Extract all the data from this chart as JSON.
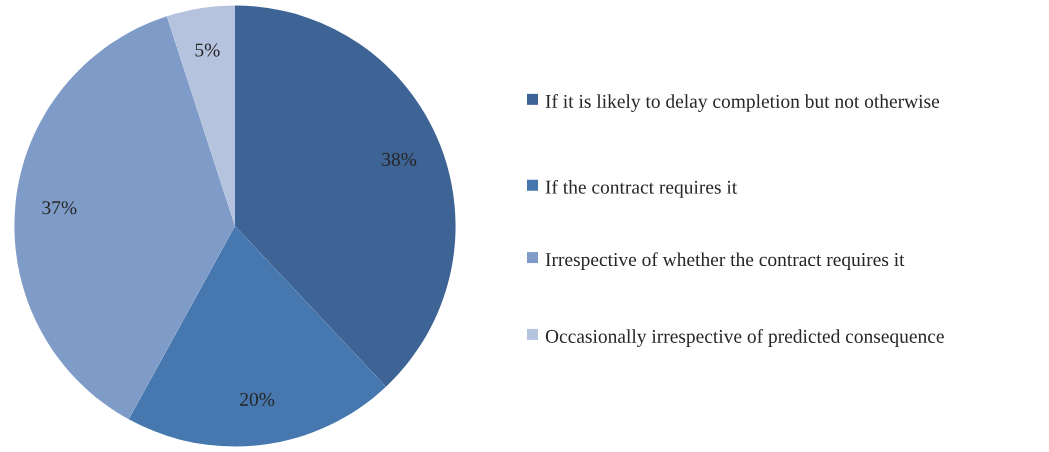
{
  "chart_data": {
    "type": "pie",
    "categories": [
      "If it is likely to delay completion but not otherwise",
      "If the contract requires it",
      "Irrespective of whether the contract requires it",
      "Occasionally irrespective of predicted consequence"
    ],
    "values": [
      38,
      20,
      37,
      5
    ],
    "colors": [
      "#3e6496",
      "#4677ae",
      "#7f9cc8",
      "#b5c3de"
    ],
    "value_labels": [
      "38%",
      "20%",
      "37%",
      "5%"
    ],
    "legend": "right"
  }
}
